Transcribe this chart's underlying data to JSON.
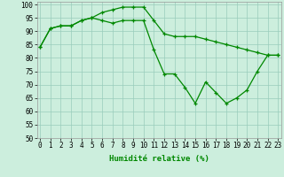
{
  "xlabel": "Humidité relative (%)",
  "x": [
    0,
    1,
    2,
    3,
    4,
    5,
    6,
    7,
    8,
    9,
    10,
    11,
    12,
    13,
    14,
    15,
    16,
    17,
    18,
    19,
    20,
    21,
    22,
    23
  ],
  "line1": [
    84,
    91,
    92,
    92,
    94,
    95,
    94,
    93,
    94,
    94,
    94,
    83,
    74,
    74,
    69,
    63,
    71,
    67,
    63,
    65,
    68,
    75,
    81,
    81
  ],
  "line2": [
    84,
    91,
    92,
    92,
    94,
    95,
    97,
    98,
    99,
    99,
    99,
    94,
    89,
    88,
    88,
    88,
    87,
    86,
    85,
    84,
    83,
    82,
    81,
    81
  ],
  "line_color": "#008800",
  "bg_color": "#cceedd",
  "grid_color": "#99ccbb",
  "ylim": [
    50,
    101
  ],
  "yticks": [
    50,
    55,
    60,
    65,
    70,
    75,
    80,
    85,
    90,
    95,
    100
  ],
  "xlim": [
    -0.3,
    23.3
  ],
  "tick_fontsize": 5.5,
  "xlabel_fontsize": 6.5
}
